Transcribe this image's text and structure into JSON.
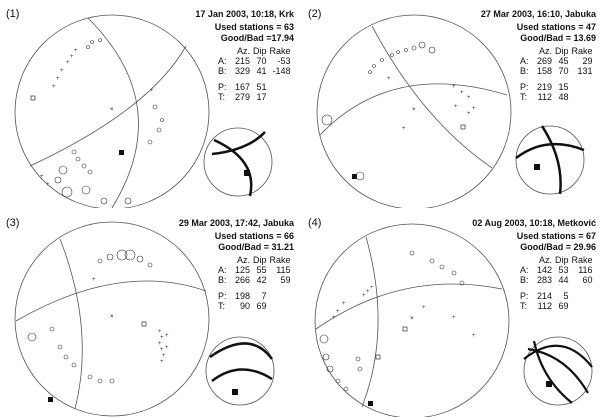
{
  "panels": [
    {
      "number": "(1)",
      "title": "17 Jan 2003, 10:18, Krk",
      "used_stations": "Used stations = 63",
      "good_bad": "Good/Bad =17.94",
      "headers": [
        "Az.",
        "Dip",
        "Rake"
      ],
      "A": [
        "A:",
        "215",
        "70",
        "-53"
      ],
      "B": [
        "B:",
        "329",
        "41",
        "-148"
      ],
      "P": [
        "P:",
        "167",
        "51"
      ],
      "T": [
        "T:",
        "279",
        "17"
      ]
    },
    {
      "number": "(2)",
      "title": "27 Mar 2003, 16:10, Jabuka",
      "used_stations": "Used stations = 47",
      "good_bad": "Good/Bad = 13.69",
      "headers": [
        "Az.",
        "Dip",
        "Rake"
      ],
      "A": [
        "A:",
        "269",
        "45",
        "29"
      ],
      "B": [
        "B:",
        "158",
        "70",
        "131"
      ],
      "P": [
        "P:",
        "219",
        "15"
      ],
      "T": [
        "T:",
        "112",
        "48"
      ]
    },
    {
      "number": "(3)",
      "title": "29 Mar 2003, 17:42, Jabuka",
      "used_stations": "Used stations = 66",
      "good_bad": "Good/Bad = 31.21",
      "headers": [
        "Az.",
        "Dip",
        "Rake"
      ],
      "A": [
        "A:",
        "125",
        "55",
        "115"
      ],
      "B": [
        "B:",
        "266",
        "42",
        "59"
      ],
      "P": [
        "P:",
        "198",
        "7"
      ],
      "T": [
        "T:",
        "90",
        "69"
      ]
    },
    {
      "number": "(4)",
      "title": "02 Aug 2003, 10:18, Metković",
      "used_stations": "Used stations = 67",
      "good_bad": "Good/Bad = 29.96",
      "headers": [
        "Az.",
        "Dip",
        "Rake"
      ],
      "A": [
        "A:",
        "142",
        "53",
        "116"
      ],
      "B": [
        "B:",
        "283",
        "44",
        "60"
      ],
      "P": [
        "P:",
        "214",
        "5"
      ],
      "T": [
        "T:",
        "112",
        "69"
      ]
    }
  ]
}
